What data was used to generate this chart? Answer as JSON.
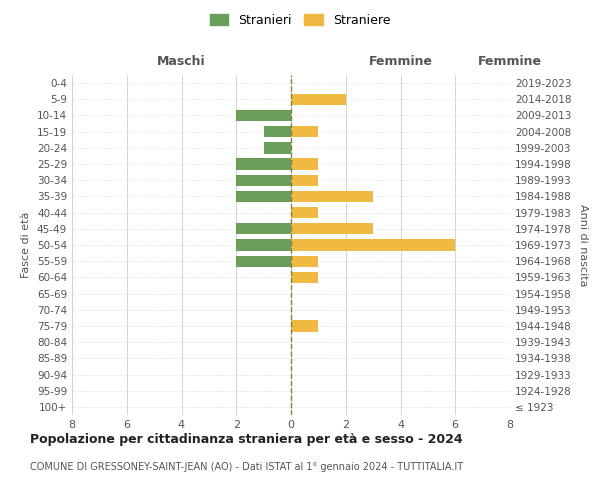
{
  "age_groups": [
    "100+",
    "95-99",
    "90-94",
    "85-89",
    "80-84",
    "75-79",
    "70-74",
    "65-69",
    "60-64",
    "55-59",
    "50-54",
    "45-49",
    "40-44",
    "35-39",
    "30-34",
    "25-29",
    "20-24",
    "15-19",
    "10-14",
    "5-9",
    "0-4"
  ],
  "birth_years": [
    "≤ 1923",
    "1924-1928",
    "1929-1933",
    "1934-1938",
    "1939-1943",
    "1944-1948",
    "1949-1953",
    "1954-1958",
    "1959-1963",
    "1964-1968",
    "1969-1973",
    "1974-1978",
    "1979-1983",
    "1984-1988",
    "1989-1993",
    "1994-1998",
    "1999-2003",
    "2004-2008",
    "2009-2013",
    "2014-2018",
    "2019-2023"
  ],
  "males": [
    0,
    0,
    0,
    0,
    0,
    0,
    0,
    0,
    0,
    2,
    2,
    2,
    0,
    2,
    2,
    2,
    1,
    1,
    2,
    0,
    0
  ],
  "females": [
    0,
    0,
    0,
    0,
    0,
    1,
    0,
    0,
    1,
    1,
    6,
    3,
    1,
    3,
    1,
    1,
    0,
    1,
    0,
    2,
    0
  ],
  "male_color": "#6a9f5b",
  "female_color": "#f0b942",
  "background_color": "#ffffff",
  "grid_color": "#cccccc",
  "dashed_line_color": "#808040",
  "title": "Popolazione per cittadinanza straniera per età e sesso - 2024",
  "subtitle": "COMUNE DI GRESSONEY-SAINT-JEAN (AO) - Dati ISTAT al 1° gennaio 2024 - TUTTITALIA.IT",
  "legend_male": "Stranieri",
  "legend_female": "Straniere",
  "xlabel_left": "Maschi",
  "xlabel_right": "Femmine",
  "ylabel_left": "Fasce di età",
  "ylabel_right": "Anni di nascita",
  "xlim": 8
}
